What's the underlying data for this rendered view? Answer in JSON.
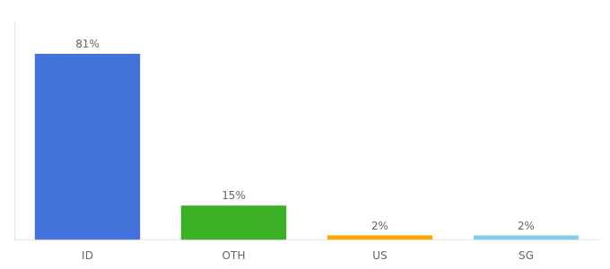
{
  "chart_data": {
    "type": "bar",
    "categories": [
      "ID",
      "OTH",
      "US",
      "SG"
    ],
    "values": [
      81,
      15,
      2,
      2
    ],
    "value_labels": [
      "81%",
      "15%",
      "2%",
      "2%"
    ],
    "colors": [
      "#4472DB",
      "#3CB025",
      "#FFA500",
      "#87CEEB"
    ],
    "ylim": [
      0,
      95
    ],
    "data_labels": true,
    "tick_labels": "x",
    "grid": false
  }
}
